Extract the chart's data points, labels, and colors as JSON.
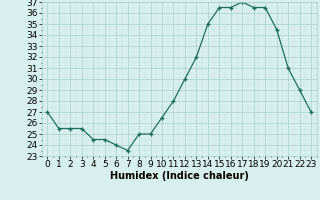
{
  "x": [
    0,
    1,
    2,
    3,
    4,
    5,
    6,
    7,
    8,
    9,
    10,
    11,
    12,
    13,
    14,
    15,
    16,
    17,
    18,
    19,
    20,
    21,
    22,
    23
  ],
  "y": [
    27,
    25.5,
    25.5,
    25.5,
    24.5,
    24.5,
    24,
    23.5,
    25,
    25,
    26.5,
    28,
    30,
    32,
    35,
    36.5,
    36.5,
    37,
    36.5,
    36.5,
    34.5,
    31,
    29,
    27
  ],
  "line_color": "#1f6f5e",
  "marker": "+",
  "bg_color": "#d8f0ed",
  "grid_major_color": "#aacfca",
  "grid_minor_color": "#c4e4e0",
  "xlabel": "Humidex (Indice chaleur)",
  "ylim": [
    23,
    37
  ],
  "xlim": [
    -0.5,
    23.5
  ],
  "yticks": [
    23,
    24,
    25,
    26,
    27,
    28,
    29,
    30,
    31,
    32,
    33,
    34,
    35,
    36,
    37
  ],
  "xticks": [
    0,
    1,
    2,
    3,
    4,
    5,
    6,
    7,
    8,
    9,
    10,
    11,
    12,
    13,
    14,
    15,
    16,
    17,
    18,
    19,
    20,
    21,
    22,
    23
  ],
  "font_size": 6.5
}
